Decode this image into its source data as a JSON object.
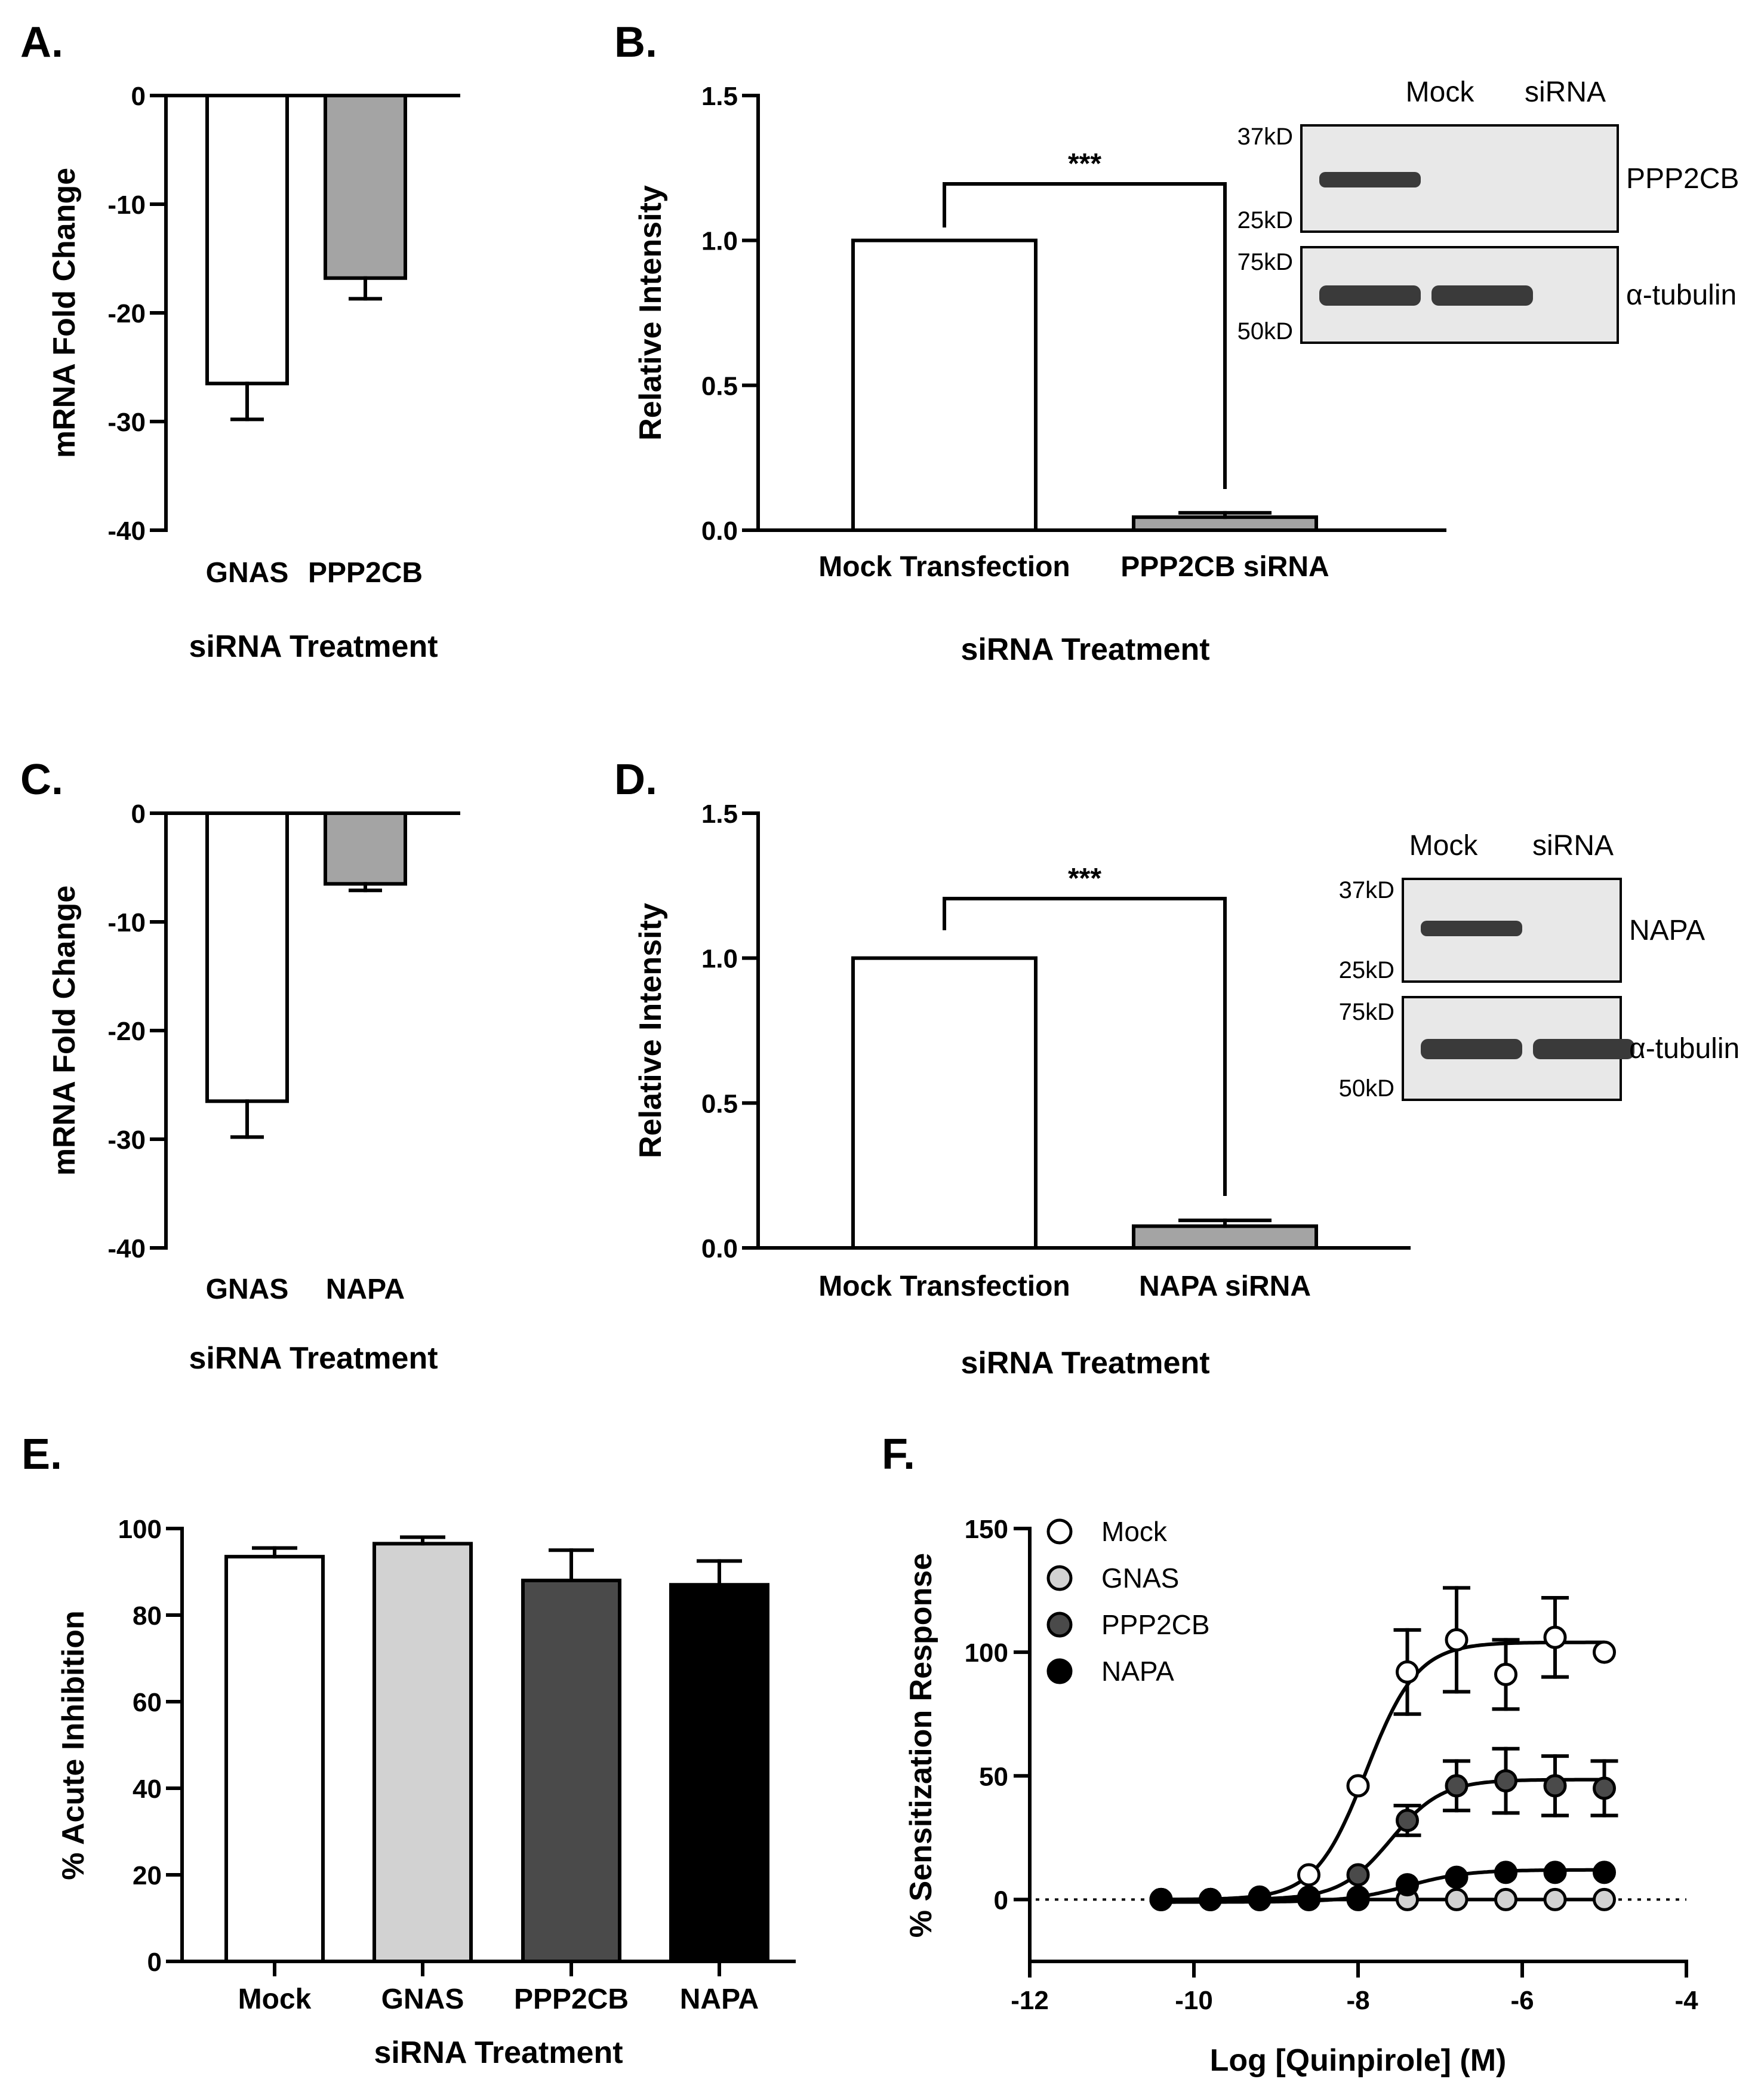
{
  "colors": {
    "white": "#ffffff",
    "light_gray": "#a4a4a4",
    "pale_gray": "#d2d2d2",
    "dark_gray": "#4a4a4a",
    "black": "#000000",
    "blot_bg": "#e8e8e8",
    "band": "#3a3a3a"
  },
  "chart_data": [
    {
      "panel": "A.",
      "type": "bar",
      "ylabel": "mRNA Fold Change",
      "xlabel": "siRNA Treatment",
      "ylim": [
        -40,
        0
      ],
      "yticks": [
        "0",
        "-10",
        "-20",
        "-30",
        "-40"
      ],
      "categories": [
        "GNAS",
        "PPP2CB"
      ],
      "values": [
        -26.5,
        -16.8
      ],
      "errors": [
        3.3,
        1.9
      ],
      "colors": [
        "white",
        "light_gray"
      ]
    },
    {
      "panel": "B.",
      "type": "bar",
      "ylabel": "Relative Intensity",
      "xlabel": "siRNA Treatment",
      "ylim": [
        0,
        1.5
      ],
      "yticks": [
        "0.0",
        "0.5",
        "1.0",
        "1.5"
      ],
      "categories": [
        "Mock Transfection",
        "PPP2CB siRNA"
      ],
      "values": [
        1.0,
        0.045
      ],
      "errors": [
        0,
        0.015
      ],
      "colors": [
        "white",
        "light_gray"
      ],
      "significance": "***",
      "blot": {
        "lanes": [
          "Mock",
          "siRNA"
        ],
        "top_markers": [
          "37kD",
          "25kD"
        ],
        "bottom_markers": [
          "75kD",
          "50kD"
        ],
        "top_label": "PPP2CB",
        "bottom_label": "α-tubulin"
      }
    },
    {
      "panel": "C.",
      "type": "bar",
      "ylabel": "mRNA Fold Change",
      "xlabel": "siRNA Treatment",
      "ylim": [
        -40,
        0
      ],
      "yticks": [
        "0",
        "-10",
        "-20",
        "-30",
        "-40"
      ],
      "categories": [
        "GNAS",
        "NAPA"
      ],
      "values": [
        -26.5,
        -6.5
      ],
      "errors": [
        3.3,
        0.6
      ],
      "colors": [
        "white",
        "light_gray"
      ]
    },
    {
      "panel": "D.",
      "type": "bar",
      "ylabel": "Relative Intensity",
      "xlabel": "siRNA Treatment",
      "ylim": [
        0,
        1.5
      ],
      "yticks": [
        "0.0",
        "0.5",
        "1.0",
        "1.5"
      ],
      "categories": [
        "Mock Transfection",
        "NAPA siRNA"
      ],
      "values": [
        1.0,
        0.075
      ],
      "errors": [
        0,
        0.02
      ],
      "colors": [
        "white",
        "light_gray"
      ],
      "significance": "***",
      "blot": {
        "lanes": [
          "Mock",
          "siRNA"
        ],
        "top_markers": [
          "37kD",
          "25kD"
        ],
        "bottom_markers": [
          "75kD",
          "50kD"
        ],
        "top_label": "NAPA",
        "bottom_label": "α-tubulin"
      }
    },
    {
      "panel": "E.",
      "type": "bar",
      "ylabel": "% Acute Inhibition",
      "xlabel": "siRNA Treatment",
      "ylim": [
        0,
        100
      ],
      "yticks": [
        "0",
        "20",
        "40",
        "60",
        "80",
        "100"
      ],
      "categories": [
        "Mock",
        "GNAS",
        "PPP2CB",
        "NAPA"
      ],
      "values": [
        93.5,
        96.5,
        88,
        87
      ],
      "errors": [
        2,
        1.5,
        7,
        5.5
      ],
      "colors": [
        "white",
        "pale_gray",
        "dark_gray",
        "black"
      ]
    },
    {
      "panel": "F.",
      "type": "scatter",
      "ylabel": "% Sensitization Response",
      "xlabel": "Log [Quinpirole] (M)",
      "xlim": [
        -12,
        -4
      ],
      "ylim": [
        -25,
        150
      ],
      "xticks": [
        "-12",
        "-10",
        "-8",
        "-6",
        "-4"
      ],
      "yticks": [
        "0",
        "50",
        "100",
        "150"
      ],
      "x": [
        -10.4,
        -9.8,
        -9.2,
        -8.6,
        -8.0,
        -7.4,
        -6.8,
        -6.2,
        -5.6,
        -5.0
      ],
      "series": [
        {
          "name": "Mock",
          "color": "white",
          "values": [
            0,
            0,
            1,
            10,
            46,
            92,
            105,
            91,
            106,
            100
          ],
          "errors": [
            0,
            0,
            0,
            0,
            0,
            17,
            21,
            14,
            16,
            0
          ],
          "fit": {
            "bottom": 0,
            "top": 104,
            "logEC50": -7.9,
            "hill": 1.4
          }
        },
        {
          "name": "GNAS",
          "color": "pale_gray",
          "values": [
            0,
            0,
            0,
            0,
            0,
            0,
            0,
            0,
            0,
            0
          ],
          "errors": [
            0,
            0,
            0,
            0,
            0,
            0,
            0,
            0,
            0,
            0
          ],
          "fit": {
            "bottom": 0,
            "top": 0,
            "logEC50": -8,
            "hill": 1
          }
        },
        {
          "name": "PPP2CB",
          "color": "dark_gray",
          "values": [
            0,
            0,
            0,
            1,
            10,
            32,
            46,
            48,
            46,
            45
          ],
          "errors": [
            0,
            0,
            0,
            0,
            0,
            6,
            10,
            13,
            12,
            11
          ],
          "fit": {
            "bottom": 0,
            "top": 48.5,
            "logEC50": -7.6,
            "hill": 1.4
          }
        },
        {
          "name": "NAPA",
          "color": "black",
          "values": [
            0,
            0,
            0,
            0,
            1,
            6,
            9,
            11,
            11,
            11
          ],
          "errors": [
            0,
            0,
            0,
            0,
            0,
            0,
            0,
            0,
            0,
            0
          ],
          "fit": {
            "bottom": -1,
            "top": 12,
            "logEC50": -7.4,
            "hill": 1.2
          }
        }
      ]
    }
  ]
}
